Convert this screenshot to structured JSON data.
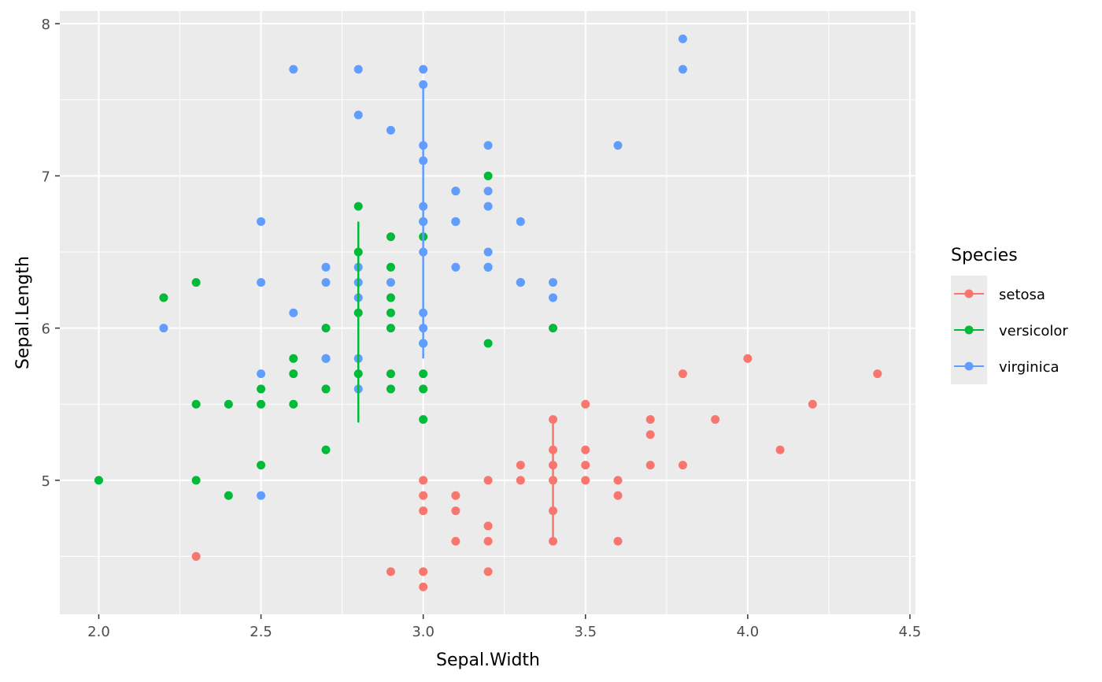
{
  "chart_data": {
    "type": "scatter",
    "title": "",
    "xlabel": "Sepal.Width",
    "ylabel": "Sepal.Length",
    "xlim": [
      1.88,
      4.517
    ],
    "ylim": [
      4.12,
      8.083
    ],
    "xticks": [
      "2.0",
      "2.5",
      "3.0",
      "3.5",
      "4.0",
      "4.5"
    ],
    "yticks": [
      "5",
      "6",
      "7",
      "8"
    ],
    "grid": true,
    "legend": {
      "title": "Species",
      "position": "right"
    },
    "series": [
      {
        "name": "setosa",
        "color": "#F8766D",
        "line": {
          "x": 3.4,
          "ymin": 4.6,
          "ymax": 5.4
        },
        "points": [
          [
            2.3,
            4.5
          ],
          [
            2.9,
            4.4
          ],
          [
            3.0,
            4.3
          ],
          [
            3.0,
            4.4
          ],
          [
            3.0,
            4.8
          ],
          [
            3.0,
            4.9
          ],
          [
            3.0,
            5.0
          ],
          [
            3.1,
            4.6
          ],
          [
            3.1,
            4.8
          ],
          [
            3.1,
            4.9
          ],
          [
            3.2,
            4.4
          ],
          [
            3.2,
            4.6
          ],
          [
            3.2,
            4.7
          ],
          [
            3.2,
            5.0
          ],
          [
            3.3,
            5.0
          ],
          [
            3.3,
            5.1
          ],
          [
            3.4,
            4.6
          ],
          [
            3.4,
            4.8
          ],
          [
            3.4,
            5.0
          ],
          [
            3.4,
            5.1
          ],
          [
            3.4,
            5.2
          ],
          [
            3.4,
            5.4
          ],
          [
            3.5,
            5.0
          ],
          [
            3.5,
            5.1
          ],
          [
            3.5,
            5.2
          ],
          [
            3.5,
            5.5
          ],
          [
            3.6,
            4.6
          ],
          [
            3.6,
            4.9
          ],
          [
            3.6,
            5.0
          ],
          [
            3.7,
            5.1
          ],
          [
            3.7,
            5.3
          ],
          [
            3.7,
            5.4
          ],
          [
            3.8,
            5.1
          ],
          [
            3.8,
            5.7
          ],
          [
            3.9,
            5.4
          ],
          [
            4.0,
            5.8
          ],
          [
            4.1,
            5.2
          ],
          [
            4.2,
            5.5
          ],
          [
            4.4,
            5.7
          ]
        ]
      },
      {
        "name": "versicolor",
        "color": "#00BA38",
        "line": {
          "x": 2.8,
          "ymin": 5.38,
          "ymax": 6.7
        },
        "points": [
          [
            2.0,
            5.0
          ],
          [
            2.2,
            6.2
          ],
          [
            2.3,
            5.0
          ],
          [
            2.3,
            5.5
          ],
          [
            2.3,
            6.3
          ],
          [
            2.4,
            4.9
          ],
          [
            2.4,
            5.5
          ],
          [
            2.5,
            5.1
          ],
          [
            2.5,
            5.5
          ],
          [
            2.5,
            5.6
          ],
          [
            2.6,
            5.5
          ],
          [
            2.6,
            5.7
          ],
          [
            2.6,
            5.8
          ],
          [
            2.7,
            5.2
          ],
          [
            2.7,
            5.6
          ],
          [
            2.7,
            5.8
          ],
          [
            2.7,
            6.0
          ],
          [
            2.8,
            5.7
          ],
          [
            2.8,
            6.1
          ],
          [
            2.8,
            6.5
          ],
          [
            2.8,
            6.8
          ],
          [
            2.9,
            5.6
          ],
          [
            2.9,
            5.7
          ],
          [
            2.9,
            6.0
          ],
          [
            2.9,
            6.1
          ],
          [
            2.9,
            6.2
          ],
          [
            2.9,
            6.4
          ],
          [
            2.9,
            6.6
          ],
          [
            3.0,
            5.4
          ],
          [
            3.0,
            5.6
          ],
          [
            3.0,
            5.7
          ],
          [
            3.0,
            5.9
          ],
          [
            3.0,
            6.6
          ],
          [
            3.0,
            6.7
          ],
          [
            3.1,
            6.7
          ],
          [
            3.1,
            6.9
          ],
          [
            3.2,
            5.9
          ],
          [
            3.2,
            6.4
          ],
          [
            3.2,
            7.0
          ],
          [
            3.3,
            6.3
          ],
          [
            3.4,
            6.0
          ]
        ]
      },
      {
        "name": "virginica",
        "color": "#619CFF",
        "line": {
          "x": 3.0,
          "ymin": 5.8,
          "ymax": 7.6
        },
        "points": [
          [
            2.2,
            6.0
          ],
          [
            2.5,
            4.9
          ],
          [
            2.5,
            5.7
          ],
          [
            2.5,
            6.3
          ],
          [
            2.5,
            6.7
          ],
          [
            2.6,
            6.1
          ],
          [
            2.6,
            7.7
          ],
          [
            2.7,
            5.8
          ],
          [
            2.7,
            6.3
          ],
          [
            2.7,
            6.4
          ],
          [
            2.8,
            5.6
          ],
          [
            2.8,
            5.8
          ],
          [
            2.8,
            6.2
          ],
          [
            2.8,
            6.3
          ],
          [
            2.8,
            6.4
          ],
          [
            2.8,
            7.4
          ],
          [
            2.8,
            7.7
          ],
          [
            2.9,
            6.3
          ],
          [
            2.9,
            7.3
          ],
          [
            3.0,
            5.9
          ],
          [
            3.0,
            6.0
          ],
          [
            3.0,
            6.1
          ],
          [
            3.0,
            6.5
          ],
          [
            3.0,
            6.7
          ],
          [
            3.0,
            6.8
          ],
          [
            3.0,
            7.1
          ],
          [
            3.0,
            7.2
          ],
          [
            3.0,
            7.6
          ],
          [
            3.0,
            7.7
          ],
          [
            3.1,
            6.4
          ],
          [
            3.1,
            6.7
          ],
          [
            3.1,
            6.9
          ],
          [
            3.2,
            6.4
          ],
          [
            3.2,
            6.5
          ],
          [
            3.2,
            6.8
          ],
          [
            3.2,
            6.9
          ],
          [
            3.2,
            7.2
          ],
          [
            3.3,
            6.3
          ],
          [
            3.3,
            6.7
          ],
          [
            3.4,
            6.2
          ],
          [
            3.4,
            6.3
          ],
          [
            3.6,
            7.2
          ],
          [
            3.8,
            7.7
          ],
          [
            3.8,
            7.9
          ]
        ]
      }
    ]
  }
}
